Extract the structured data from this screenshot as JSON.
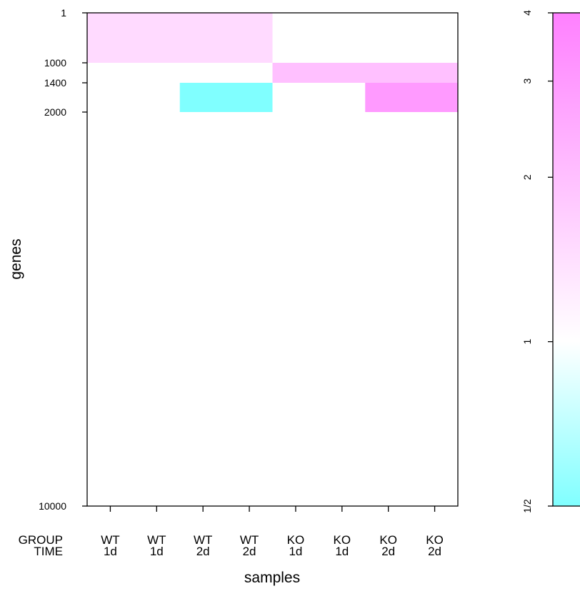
{
  "chart_data": {
    "type": "heatmap",
    "xlabel": "samples",
    "ylabel": "genes",
    "sample_annotation": {
      "row_labels": [
        "GROUP",
        "TIME"
      ],
      "samples": [
        {
          "group": "WT",
          "time": "1d"
        },
        {
          "group": "WT",
          "time": "1d"
        },
        {
          "group": "WT",
          "time": "2d"
        },
        {
          "group": "WT",
          "time": "2d"
        },
        {
          "group": "KO",
          "time": "1d"
        },
        {
          "group": "KO",
          "time": "1d"
        },
        {
          "group": "KO",
          "time": "2d"
        },
        {
          "group": "KO",
          "time": "2d"
        }
      ]
    },
    "y_ticks": [
      {
        "value": 1,
        "label": "1"
      },
      {
        "value": 1000,
        "label": "1000"
      },
      {
        "value": 1400,
        "label": "1400"
      },
      {
        "value": 2000,
        "label": "2000"
      },
      {
        "value": 10000,
        "label": "10000"
      }
    ],
    "y_scale": "rank (1 to 10000, nonlinear display)",
    "gene_range": [
      1,
      10000
    ],
    "blocks": [
      {
        "samples": [
          1,
          4
        ],
        "genes": [
          1,
          1000
        ],
        "fold_change": 1.5
      },
      {
        "samples": [
          5,
          8
        ],
        "genes": [
          1000,
          1400
        ],
        "fold_change": 2.0
      },
      {
        "samples": [
          3,
          4
        ],
        "genes": [
          1400,
          2000
        ],
        "fold_change": 0.5
      },
      {
        "samples": [
          7,
          8
        ],
        "genes": [
          1400,
          2000
        ],
        "fold_change": 3.0
      }
    ],
    "background_fold_change": 1,
    "colorbar": {
      "scale": "log2",
      "range": [
        0.5,
        4
      ],
      "ticks": [
        {
          "value": 0.5,
          "label": "1/2"
        },
        {
          "value": 1,
          "label": "1"
        },
        {
          "value": 2,
          "label": "2"
        },
        {
          "value": 3,
          "label": "3"
        },
        {
          "value": 4,
          "label": "4"
        }
      ],
      "low_color": "#80ffff",
      "mid_color": "#ffffff",
      "high_color": "#ff80ff"
    }
  }
}
